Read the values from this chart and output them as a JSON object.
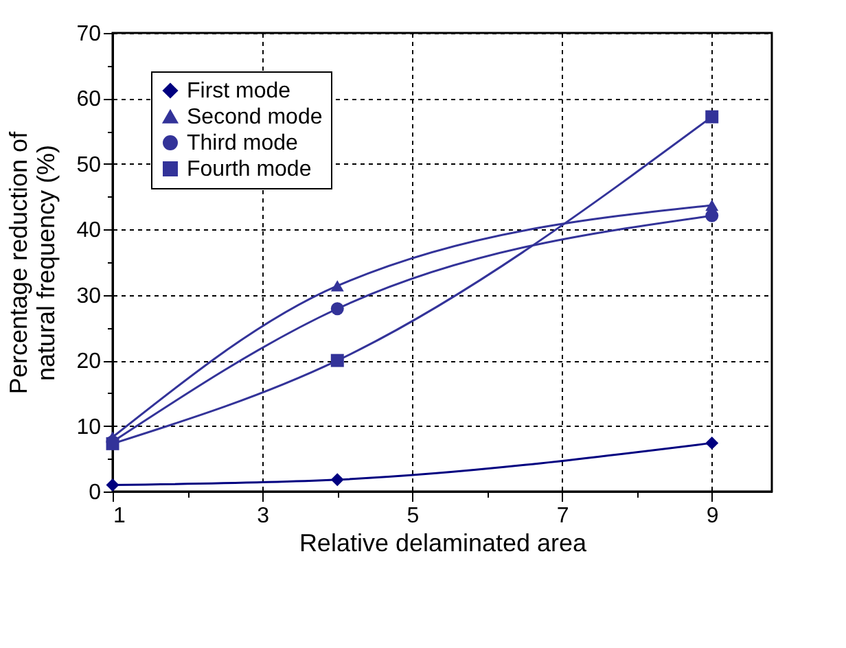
{
  "chart_data": {
    "type": "line",
    "xlabel": "Relative delaminated area",
    "ylabel": "Percentage reduction of\nnatural frequency (%)",
    "x": [
      1,
      4,
      9
    ],
    "series": [
      {
        "name": "First mode",
        "color": "#000080",
        "marker": "diamond",
        "values": [
          1.0,
          1.8,
          7.4
        ]
      },
      {
        "name": "Second mode",
        "color": "#333399",
        "marker": "triangle",
        "values": [
          8.3,
          31.4,
          43.7
        ]
      },
      {
        "name": "Third mode",
        "color": "#333399",
        "marker": "circle",
        "values": [
          7.6,
          27.9,
          42.1
        ]
      },
      {
        "name": "Fourth mode",
        "color": "#333399",
        "marker": "square",
        "values": [
          7.3,
          20,
          57.2
        ]
      }
    ],
    "xlim": [
      1,
      9.8
    ],
    "xticks": [
      1,
      {
        "value": 2,
        "label": null
      },
      3,
      {
        "value": 4,
        "label": null
      },
      5,
      {
        "value": 6,
        "label": null
      },
      7,
      {
        "value": 8,
        "label": null
      },
      9
    ],
    "ylim": [
      0,
      70
    ],
    "yticks": [
      0,
      {
        "value": 5,
        "label": null
      },
      10,
      {
        "value": 15,
        "label": null
      },
      20,
      {
        "value": 25,
        "label": null
      },
      30,
      {
        "value": 35,
        "label": null
      },
      40,
      {
        "value": 45,
        "label": null
      },
      50,
      {
        "value": 55,
        "label": null
      },
      60,
      {
        "value": 65,
        "label": null
      },
      70
    ],
    "grid": true,
    "legend": "top left",
    "line_style": "solid"
  }
}
